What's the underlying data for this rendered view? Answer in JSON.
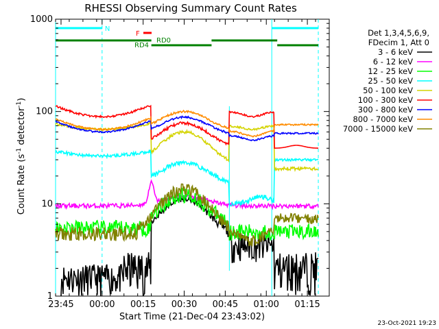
{
  "chart_data": {
    "type": "line",
    "title": "RHESSI Observing Summary Count Rates",
    "xlabel": "Start Time (21-Dec-04 23:43:02)",
    "ylabel_main": "Count Rate (s",
    "ylabel_sup1": "-1",
    "ylabel_mid": " detector",
    "ylabel_sup2": "-1",
    "ylabel_end": ")",
    "y_scale": "log",
    "ylim": [
      1,
      1000
    ],
    "xlim": [
      "23:43",
      "01:23"
    ],
    "x_ticks": [
      {
        "label": "23:45",
        "min": 2
      },
      {
        "label": "00:00",
        "min": 17
      },
      {
        "label": "00:15",
        "min": 32
      },
      {
        "label": "00:30",
        "min": 47
      },
      {
        "label": "00:45",
        "min": 62
      },
      {
        "label": "01:00",
        "min": 77
      },
      {
        "label": "01:15",
        "min": 92
      }
    ],
    "y_ticks": [
      {
        "label": "1",
        "value": 1
      },
      {
        "label": "10",
        "value": 10
      },
      {
        "label": "100",
        "value": 100
      },
      {
        "label": "1000",
        "value": 1000
      }
    ],
    "legend_header": [
      "Det 1,3,4,5,6,9,",
      "FDecim 1, Att 0"
    ],
    "series": [
      {
        "name": "3 - 6 keV",
        "color": "#000000"
      },
      {
        "name": "6 - 12 keV",
        "color": "#ff00ff"
      },
      {
        "name": "12 - 25 keV",
        "color": "#00ff00"
      },
      {
        "name": "25 - 50 keV",
        "color": "#00ffff"
      },
      {
        "name": "50 - 100 keV",
        "color": "#d4d400"
      },
      {
        "name": "100 - 300 keV",
        "color": "#ff0000"
      },
      {
        "name": "300 - 800 keV",
        "color": "#0000ff"
      },
      {
        "name": "800 - 7000 keV",
        "color": "#ff8c00"
      },
      {
        "name": "7000 - 15000 keV",
        "color": "#808000"
      }
    ],
    "annotations": {
      "night_label": "N",
      "flare_label": "F",
      "rd0_label": "RD0",
      "rd4_label": "RD4"
    },
    "footer_date": "23-Oct-2021 19:23"
  }
}
